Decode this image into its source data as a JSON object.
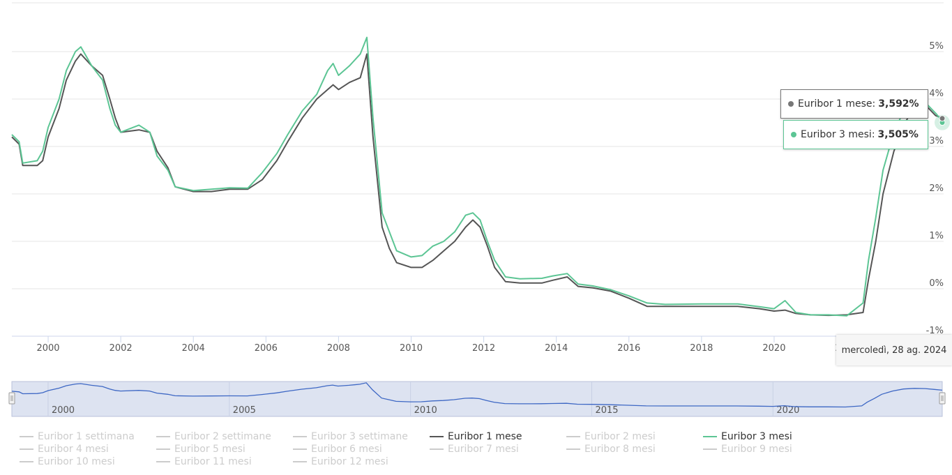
{
  "chart_data": {
    "type": "line",
    "x_range": [
      1999.0,
      2024.67
    ],
    "ylim": [
      -1,
      6
    ],
    "y_ticks": [
      "-1%",
      "0%",
      "1%",
      "2%",
      "3%",
      "4%",
      "5%"
    ],
    "x_ticks": [
      "2000",
      "2002",
      "2004",
      "2006",
      "2008",
      "2010",
      "2012",
      "2014",
      "2016",
      "2018",
      "2020",
      "2022"
    ],
    "navigator_ticks": [
      "2000",
      "2005",
      "2010",
      "2015",
      "2020"
    ],
    "series": [
      {
        "name": "Euribor 1 mese",
        "color": "#555555",
        "points": [
          [
            1999.0,
            3.2
          ],
          [
            1999.2,
            3.05
          ],
          [
            1999.3,
            2.6
          ],
          [
            1999.7,
            2.6
          ],
          [
            1999.85,
            2.7
          ],
          [
            2000.0,
            3.2
          ],
          [
            2000.3,
            3.8
          ],
          [
            2000.5,
            4.4
          ],
          [
            2000.75,
            4.8
          ],
          [
            2000.9,
            4.95
          ],
          [
            2001.2,
            4.7
          ],
          [
            2001.5,
            4.5
          ],
          [
            2001.7,
            4.0
          ],
          [
            2001.85,
            3.6
          ],
          [
            2002.0,
            3.3
          ],
          [
            2002.5,
            3.35
          ],
          [
            2002.8,
            3.3
          ],
          [
            2003.0,
            2.9
          ],
          [
            2003.3,
            2.55
          ],
          [
            2003.5,
            2.15
          ],
          [
            2004.0,
            2.05
          ],
          [
            2004.5,
            2.05
          ],
          [
            2005.0,
            2.1
          ],
          [
            2005.5,
            2.1
          ],
          [
            2005.9,
            2.3
          ],
          [
            2006.3,
            2.7
          ],
          [
            2006.6,
            3.1
          ],
          [
            2007.0,
            3.6
          ],
          [
            2007.4,
            4.0
          ],
          [
            2007.7,
            4.2
          ],
          [
            2007.85,
            4.3
          ],
          [
            2008.0,
            4.2
          ],
          [
            2008.3,
            4.35
          ],
          [
            2008.6,
            4.45
          ],
          [
            2008.78,
            4.95
          ],
          [
            2008.95,
            3.2
          ],
          [
            2009.2,
            1.3
          ],
          [
            2009.4,
            0.85
          ],
          [
            2009.6,
            0.55
          ],
          [
            2010.0,
            0.45
          ],
          [
            2010.3,
            0.45
          ],
          [
            2010.6,
            0.6
          ],
          [
            2010.9,
            0.8
          ],
          [
            2011.2,
            1.0
          ],
          [
            2011.5,
            1.3
          ],
          [
            2011.7,
            1.45
          ],
          [
            2011.9,
            1.3
          ],
          [
            2012.1,
            0.9
          ],
          [
            2012.3,
            0.45
          ],
          [
            2012.6,
            0.15
          ],
          [
            2013.0,
            0.12
          ],
          [
            2013.6,
            0.12
          ],
          [
            2013.9,
            0.18
          ],
          [
            2014.3,
            0.25
          ],
          [
            2014.6,
            0.05
          ],
          [
            2015.0,
            0.02
          ],
          [
            2015.5,
            -0.05
          ],
          [
            2016.0,
            -0.2
          ],
          [
            2016.5,
            -0.37
          ],
          [
            2017.0,
            -0.37
          ],
          [
            2018.0,
            -0.37
          ],
          [
            2019.0,
            -0.37
          ],
          [
            2019.6,
            -0.42
          ],
          [
            2020.0,
            -0.47
          ],
          [
            2020.3,
            -0.45
          ],
          [
            2020.6,
            -0.52
          ],
          [
            2021.0,
            -0.55
          ],
          [
            2021.5,
            -0.56
          ],
          [
            2022.0,
            -0.55
          ],
          [
            2022.45,
            -0.5
          ],
          [
            2022.6,
            0.2
          ],
          [
            2022.8,
            1.0
          ],
          [
            2023.0,
            2.0
          ],
          [
            2023.3,
            2.9
          ],
          [
            2023.6,
            3.5
          ],
          [
            2023.9,
            3.85
          ],
          [
            2024.2,
            3.85
          ],
          [
            2024.45,
            3.65
          ],
          [
            2024.67,
            3.592
          ]
        ]
      },
      {
        "name": "Euribor 3 mesi",
        "color": "#5cc594",
        "points": [
          [
            1999.0,
            3.25
          ],
          [
            1999.2,
            3.1
          ],
          [
            1999.3,
            2.65
          ],
          [
            1999.7,
            2.7
          ],
          [
            1999.85,
            2.9
          ],
          [
            2000.0,
            3.4
          ],
          [
            2000.3,
            4.0
          ],
          [
            2000.5,
            4.6
          ],
          [
            2000.75,
            5.0
          ],
          [
            2000.9,
            5.1
          ],
          [
            2001.2,
            4.7
          ],
          [
            2001.5,
            4.4
          ],
          [
            2001.7,
            3.8
          ],
          [
            2001.85,
            3.45
          ],
          [
            2002.0,
            3.3
          ],
          [
            2002.5,
            3.45
          ],
          [
            2002.8,
            3.3
          ],
          [
            2003.0,
            2.8
          ],
          [
            2003.3,
            2.5
          ],
          [
            2003.5,
            2.15
          ],
          [
            2004.0,
            2.07
          ],
          [
            2004.5,
            2.1
          ],
          [
            2005.0,
            2.13
          ],
          [
            2005.5,
            2.12
          ],
          [
            2005.9,
            2.45
          ],
          [
            2006.3,
            2.85
          ],
          [
            2006.6,
            3.25
          ],
          [
            2007.0,
            3.75
          ],
          [
            2007.4,
            4.1
          ],
          [
            2007.7,
            4.6
          ],
          [
            2007.85,
            4.75
          ],
          [
            2008.0,
            4.5
          ],
          [
            2008.3,
            4.7
          ],
          [
            2008.6,
            4.95
          ],
          [
            2008.78,
            5.3
          ],
          [
            2008.95,
            3.6
          ],
          [
            2009.2,
            1.6
          ],
          [
            2009.4,
            1.2
          ],
          [
            2009.6,
            0.8
          ],
          [
            2010.0,
            0.67
          ],
          [
            2010.3,
            0.7
          ],
          [
            2010.6,
            0.9
          ],
          [
            2010.9,
            1.0
          ],
          [
            2011.2,
            1.2
          ],
          [
            2011.5,
            1.55
          ],
          [
            2011.7,
            1.6
          ],
          [
            2011.9,
            1.45
          ],
          [
            2012.1,
            1.0
          ],
          [
            2012.3,
            0.6
          ],
          [
            2012.6,
            0.25
          ],
          [
            2013.0,
            0.21
          ],
          [
            2013.6,
            0.22
          ],
          [
            2013.9,
            0.27
          ],
          [
            2014.3,
            0.32
          ],
          [
            2014.6,
            0.1
          ],
          [
            2015.0,
            0.06
          ],
          [
            2015.5,
            -0.02
          ],
          [
            2016.0,
            -0.15
          ],
          [
            2016.5,
            -0.3
          ],
          [
            2017.0,
            -0.33
          ],
          [
            2018.0,
            -0.32
          ],
          [
            2019.0,
            -0.32
          ],
          [
            2019.6,
            -0.38
          ],
          [
            2020.0,
            -0.42
          ],
          [
            2020.3,
            -0.25
          ],
          [
            2020.6,
            -0.5
          ],
          [
            2021.0,
            -0.55
          ],
          [
            2021.5,
            -0.55
          ],
          [
            2022.0,
            -0.57
          ],
          [
            2022.45,
            -0.3
          ],
          [
            2022.6,
            0.6
          ],
          [
            2022.8,
            1.5
          ],
          [
            2023.0,
            2.5
          ],
          [
            2023.3,
            3.3
          ],
          [
            2023.6,
            3.8
          ],
          [
            2023.9,
            3.95
          ],
          [
            2024.2,
            3.9
          ],
          [
            2024.45,
            3.7
          ],
          [
            2024.67,
            3.505
          ]
        ]
      }
    ]
  },
  "tooltip": {
    "date": "mercoledì, 28 ag. 2024",
    "rows": [
      {
        "label": "Euribor 1 mese:",
        "value": "3,592%",
        "color": "#777777"
      },
      {
        "label": "Euribor 3 mesi:",
        "value": "3,505%",
        "color": "#5cc594"
      }
    ]
  },
  "legend": [
    {
      "label": "Euribor 1 settimana",
      "active": false
    },
    {
      "label": "Euribor 2 settimane",
      "active": false
    },
    {
      "label": "Euribor 3 settimane",
      "active": false
    },
    {
      "label": "Euribor 1 mese",
      "active": true,
      "color": "#555555"
    },
    {
      "label": "Euribor 2 mesi",
      "active": false
    },
    {
      "label": "Euribor 3 mesi",
      "active": true,
      "color": "#5cc594"
    },
    {
      "label": "Euribor 4 mesi",
      "active": false
    },
    {
      "label": "Euribor 5 mesi",
      "active": false
    },
    {
      "label": "Euribor 6 mesi",
      "active": false
    },
    {
      "label": "Euribor 7 mesi",
      "active": false
    },
    {
      "label": "Euribor 8 mesi",
      "active": false
    },
    {
      "label": "Euribor 9 mesi",
      "active": false
    },
    {
      "label": "Euribor 10 mesi",
      "active": false
    },
    {
      "label": "Euribor 11 mesi",
      "active": false
    },
    {
      "label": "Euribor 12 mesi",
      "active": false
    }
  ]
}
